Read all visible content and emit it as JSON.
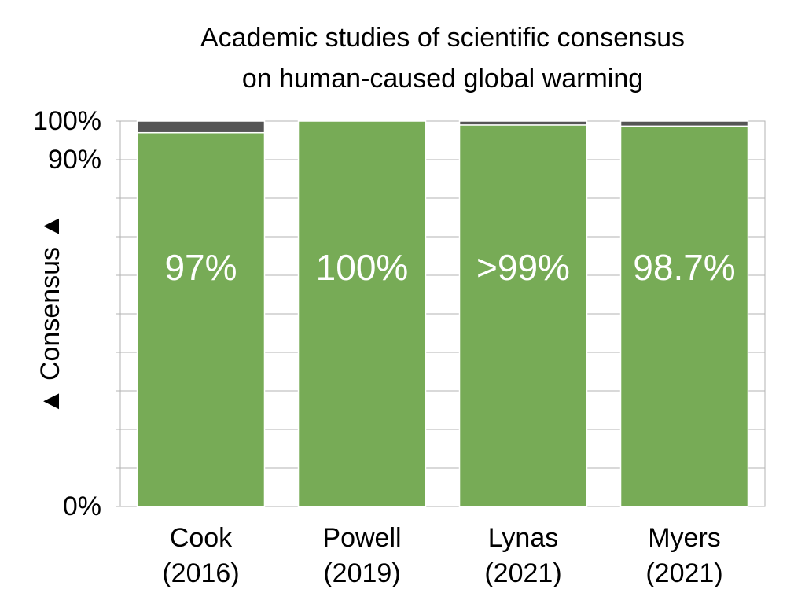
{
  "chart_data": {
    "type": "stacked_bar",
    "title": [
      "Academic studies of scientific consensus",
      "on human-caused global warming"
    ],
    "ylabel": "▲ Consensus ▲",
    "categories": [
      [
        "Cook",
        "(2016)"
      ],
      [
        "Powell",
        "(2019)"
      ],
      [
        "Lynas",
        "(2021)"
      ],
      [
        "Myers",
        "(2021)"
      ]
    ],
    "series": [
      {
        "color": "#77ab56",
        "values": [
          97,
          100,
          99,
          98.7
        ],
        "value_labels": [
          "97%",
          "100%",
          ">99%",
          "98.7%"
        ]
      },
      {
        "color": "#555555",
        "values": [
          3,
          0,
          1,
          1.3
        ]
      }
    ],
    "ylim": [
      0,
      100
    ],
    "yticks": [
      {
        "value": 0,
        "label": "0%"
      },
      {
        "value": 90,
        "label": "90%"
      },
      {
        "value": 100,
        "label": "100%"
      }
    ],
    "minor_yticks": [
      10,
      20,
      30,
      40,
      50,
      60,
      70,
      80
    ],
    "grid": true
  }
}
